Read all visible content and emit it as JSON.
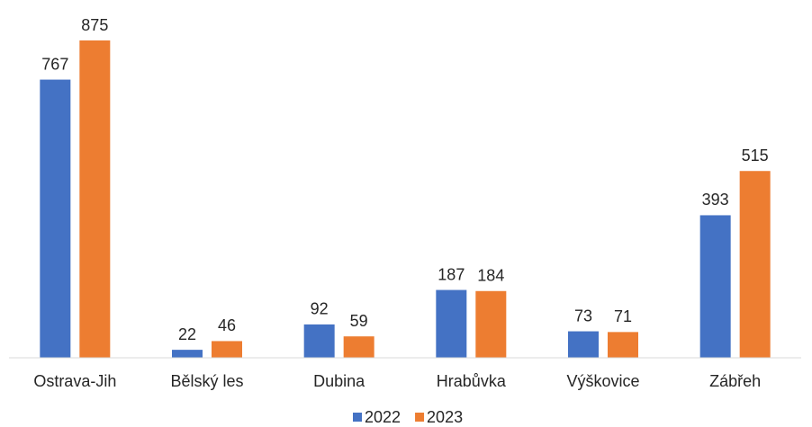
{
  "chart_data": {
    "type": "bar",
    "categories": [
      "Ostrava-Jih",
      "Bělský les",
      "Dubina",
      "Hrabůvka",
      "Výškovice",
      "Zábřeh"
    ],
    "series": [
      {
        "name": "2022",
        "color": "#4472c4",
        "values": [
          767,
          22,
          92,
          187,
          73,
          393
        ]
      },
      {
        "name": "2023",
        "color": "#ed7d31",
        "values": [
          875,
          46,
          59,
          184,
          71,
          515
        ]
      }
    ],
    "legend": "bottom"
  }
}
